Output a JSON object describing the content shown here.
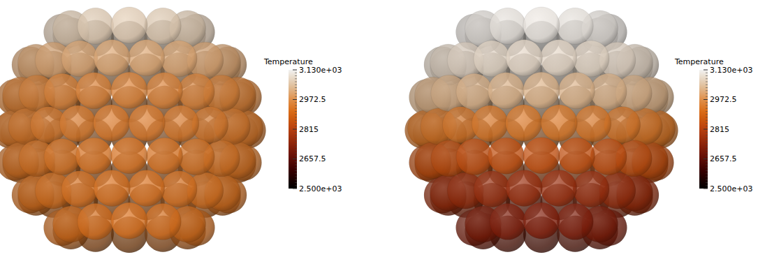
{
  "chart_data": [
    {
      "type": "sphere_cluster",
      "layer_temperatures": [
        3070,
        3010,
        2950,
        2935,
        2925,
        2920,
        2915
      ],
      "colorbar": {
        "title": "Temperature",
        "range": [
          2500,
          3130
        ],
        "ticks": [
          {
            "value": 3130,
            "label": "3.130e+03"
          },
          2972.5,
          2815,
          2657.5,
          {
            "value": 2500,
            "label": "2.500e+03"
          }
        ]
      }
    },
    {
      "type": "sphere_cluster",
      "layer_temperatures": [
        3115,
        3090,
        3030,
        2930,
        2850,
        2760,
        2715
      ],
      "colorbar": {
        "title": "Temperature",
        "range": [
          2500,
          3130
        ],
        "ticks": [
          {
            "value": 3130,
            "label": "3.130e+03"
          },
          2972.5,
          2815,
          2657.5,
          {
            "value": 2500,
            "label": "2.500e+03"
          }
        ]
      }
    }
  ]
}
